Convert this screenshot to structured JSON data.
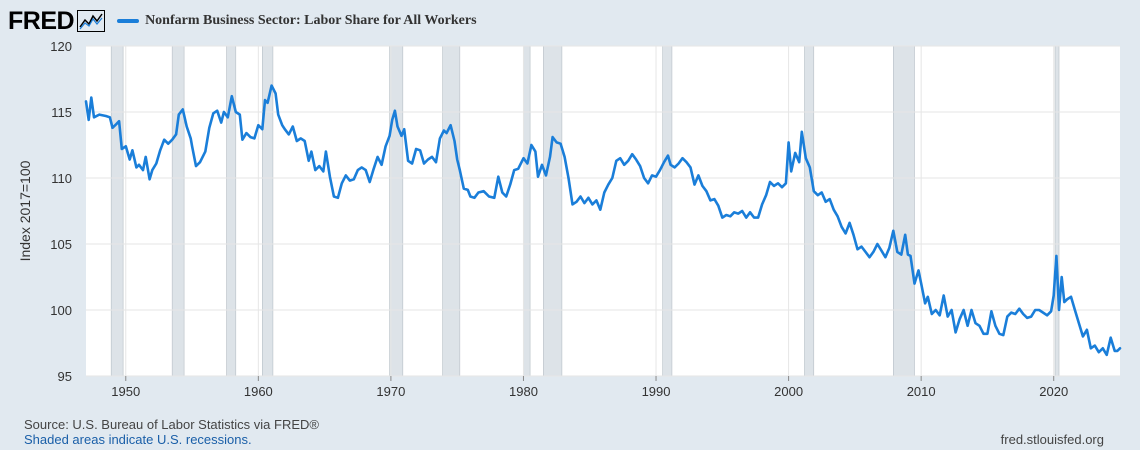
{
  "brand": {
    "logo_text": "FRED"
  },
  "legend": {
    "label": "Nonfarm Business Sector: Labor Share for All Workers",
    "color": "#1a7ed9"
  },
  "footer": {
    "source": "Source: U.S. Bureau of Labor Statistics via FRED®",
    "recession_note": "Shaded areas indicate U.S. recessions.",
    "site": "fred.stlouisfed.org"
  },
  "colors": {
    "line": "#1a7ed9",
    "recession": "#dde3e8",
    "recession_border": "#b7bfc6",
    "plot_bg": "#ffffff",
    "page_bg": "#e1e9f0",
    "grid": "#e6e6e6"
  },
  "chart_data": {
    "type": "line",
    "title": "Nonfarm Business Sector: Labor Share for All Workers",
    "ylabel": "Index 2017=100",
    "xlabel": "",
    "xlim": [
      1947.0,
      2025.0
    ],
    "ylim": [
      95,
      120
    ],
    "x_ticks": [
      1950,
      1960,
      1970,
      1980,
      1990,
      2000,
      2010,
      2020
    ],
    "y_ticks": [
      95,
      100,
      105,
      110,
      115,
      120
    ],
    "grid": true,
    "recessions": [
      [
        1948.9,
        1949.8
      ],
      [
        1953.5,
        1954.4
      ],
      [
        1957.6,
        1958.3
      ],
      [
        1960.3,
        1961.1
      ],
      [
        1969.9,
        1970.9
      ],
      [
        1973.9,
        1975.2
      ],
      [
        1980.0,
        1980.5
      ],
      [
        1981.5,
        1982.9
      ],
      [
        1990.5,
        1991.2
      ],
      [
        2001.2,
        2001.9
      ],
      [
        2007.9,
        2009.5
      ],
      [
        2020.1,
        2020.4
      ]
    ],
    "series": [
      {
        "name": "Nonfarm Business Sector: Labor Share for All Workers",
        "points": [
          [
            1947.0,
            115.8
          ],
          [
            1947.2,
            114.4
          ],
          [
            1947.4,
            116.1
          ],
          [
            1947.6,
            114.6
          ],
          [
            1948.0,
            114.8
          ],
          [
            1948.5,
            114.7
          ],
          [
            1948.8,
            114.6
          ],
          [
            1949.0,
            113.8
          ],
          [
            1949.3,
            114.1
          ],
          [
            1949.5,
            114.3
          ],
          [
            1949.7,
            112.2
          ],
          [
            1950.0,
            112.4
          ],
          [
            1950.3,
            111.4
          ],
          [
            1950.5,
            112.1
          ],
          [
            1950.8,
            110.8
          ],
          [
            1951.0,
            111.0
          ],
          [
            1951.3,
            110.6
          ],
          [
            1951.5,
            111.6
          ],
          [
            1951.8,
            109.9
          ],
          [
            1952.0,
            110.6
          ],
          [
            1952.3,
            111.1
          ],
          [
            1952.6,
            112.1
          ],
          [
            1952.9,
            112.9
          ],
          [
            1953.2,
            112.6
          ],
          [
            1953.5,
            112.9
          ],
          [
            1953.8,
            113.3
          ],
          [
            1954.0,
            114.8
          ],
          [
            1954.3,
            115.2
          ],
          [
            1954.6,
            113.9
          ],
          [
            1954.9,
            113.0
          ],
          [
            1955.0,
            112.4
          ],
          [
            1955.3,
            110.9
          ],
          [
            1955.6,
            111.2
          ],
          [
            1955.9,
            111.8
          ],
          [
            1956.0,
            112.0
          ],
          [
            1956.3,
            113.8
          ],
          [
            1956.6,
            114.9
          ],
          [
            1956.9,
            115.1
          ],
          [
            1957.2,
            114.2
          ],
          [
            1957.4,
            115.0
          ],
          [
            1957.7,
            114.6
          ],
          [
            1958.0,
            116.2
          ],
          [
            1958.3,
            115.0
          ],
          [
            1958.6,
            114.8
          ],
          [
            1958.8,
            112.9
          ],
          [
            1959.1,
            113.4
          ],
          [
            1959.4,
            113.1
          ],
          [
            1959.7,
            113.0
          ],
          [
            1960.0,
            114.0
          ],
          [
            1960.3,
            113.7
          ],
          [
            1960.5,
            115.9
          ],
          [
            1960.7,
            115.7
          ],
          [
            1961.0,
            117.0
          ],
          [
            1961.3,
            116.4
          ],
          [
            1961.5,
            114.8
          ],
          [
            1961.8,
            114.0
          ],
          [
            1962.0,
            113.7
          ],
          [
            1962.3,
            113.3
          ],
          [
            1962.6,
            113.9
          ],
          [
            1962.9,
            112.8
          ],
          [
            1963.2,
            113.0
          ],
          [
            1963.5,
            112.8
          ],
          [
            1963.8,
            111.3
          ],
          [
            1964.0,
            112.0
          ],
          [
            1964.3,
            110.6
          ],
          [
            1964.6,
            110.9
          ],
          [
            1964.9,
            110.5
          ],
          [
            1965.1,
            112.0
          ],
          [
            1965.4,
            110.1
          ],
          [
            1965.7,
            108.6
          ],
          [
            1966.0,
            108.5
          ],
          [
            1966.3,
            109.6
          ],
          [
            1966.6,
            110.2
          ],
          [
            1966.9,
            109.8
          ],
          [
            1967.2,
            109.9
          ],
          [
            1967.5,
            110.6
          ],
          [
            1967.8,
            110.8
          ],
          [
            1968.1,
            110.6
          ],
          [
            1968.4,
            109.7
          ],
          [
            1968.7,
            110.7
          ],
          [
            1969.0,
            111.6
          ],
          [
            1969.3,
            111.0
          ],
          [
            1969.6,
            112.4
          ],
          [
            1969.9,
            113.2
          ],
          [
            1970.1,
            114.4
          ],
          [
            1970.3,
            115.1
          ],
          [
            1970.5,
            113.9
          ],
          [
            1970.8,
            113.2
          ],
          [
            1971.0,
            113.7
          ],
          [
            1971.3,
            111.3
          ],
          [
            1971.6,
            111.1
          ],
          [
            1971.9,
            112.2
          ],
          [
            1972.2,
            112.1
          ],
          [
            1972.5,
            111.1
          ],
          [
            1972.8,
            111.4
          ],
          [
            1973.1,
            111.6
          ],
          [
            1973.4,
            111.2
          ],
          [
            1973.7,
            113.0
          ],
          [
            1974.0,
            113.6
          ],
          [
            1974.2,
            113.4
          ],
          [
            1974.5,
            114.0
          ],
          [
            1974.8,
            112.8
          ],
          [
            1975.0,
            111.4
          ],
          [
            1975.2,
            110.6
          ],
          [
            1975.5,
            109.2
          ],
          [
            1975.8,
            109.1
          ],
          [
            1976.0,
            108.6
          ],
          [
            1976.3,
            108.5
          ],
          [
            1976.6,
            108.9
          ],
          [
            1977.0,
            109.0
          ],
          [
            1977.4,
            108.6
          ],
          [
            1977.8,
            108.5
          ],
          [
            1978.1,
            110.1
          ],
          [
            1978.4,
            108.9
          ],
          [
            1978.7,
            108.6
          ],
          [
            1979.0,
            109.5
          ],
          [
            1979.3,
            110.6
          ],
          [
            1979.6,
            110.7
          ],
          [
            1980.0,
            111.5
          ],
          [
            1980.3,
            111.1
          ],
          [
            1980.6,
            112.5
          ],
          [
            1980.9,
            112.0
          ],
          [
            1981.1,
            110.1
          ],
          [
            1981.4,
            111.0
          ],
          [
            1981.7,
            110.2
          ],
          [
            1982.0,
            111.6
          ],
          [
            1982.2,
            113.1
          ],
          [
            1982.5,
            112.7
          ],
          [
            1982.8,
            112.6
          ],
          [
            1983.1,
            111.6
          ],
          [
            1983.4,
            110.0
          ],
          [
            1983.7,
            108.0
          ],
          [
            1984.0,
            108.2
          ],
          [
            1984.3,
            108.6
          ],
          [
            1984.6,
            108.1
          ],
          [
            1984.9,
            108.5
          ],
          [
            1985.2,
            108.0
          ],
          [
            1985.5,
            108.3
          ],
          [
            1985.8,
            107.6
          ],
          [
            1986.1,
            108.9
          ],
          [
            1986.4,
            109.5
          ],
          [
            1986.7,
            110.0
          ],
          [
            1987.0,
            111.3
          ],
          [
            1987.3,
            111.5
          ],
          [
            1987.6,
            111.0
          ],
          [
            1987.9,
            111.3
          ],
          [
            1988.2,
            111.8
          ],
          [
            1988.5,
            111.4
          ],
          [
            1988.8,
            110.9
          ],
          [
            1989.1,
            110.0
          ],
          [
            1989.4,
            109.6
          ],
          [
            1989.7,
            110.2
          ],
          [
            1990.0,
            110.1
          ],
          [
            1990.3,
            110.6
          ],
          [
            1990.6,
            111.2
          ],
          [
            1990.9,
            111.7
          ],
          [
            1991.1,
            111.0
          ],
          [
            1991.4,
            110.8
          ],
          [
            1991.7,
            111.1
          ],
          [
            1992.0,
            111.5
          ],
          [
            1992.3,
            111.2
          ],
          [
            1992.6,
            110.8
          ],
          [
            1992.9,
            109.5
          ],
          [
            1993.2,
            110.2
          ],
          [
            1993.5,
            109.4
          ],
          [
            1993.8,
            109.0
          ],
          [
            1994.1,
            108.3
          ],
          [
            1994.4,
            108.4
          ],
          [
            1994.7,
            107.9
          ],
          [
            1995.0,
            107.0
          ],
          [
            1995.3,
            107.2
          ],
          [
            1995.6,
            107.1
          ],
          [
            1995.9,
            107.4
          ],
          [
            1996.2,
            107.3
          ],
          [
            1996.5,
            107.5
          ],
          [
            1996.8,
            107.0
          ],
          [
            1997.1,
            107.4
          ],
          [
            1997.4,
            107.0
          ],
          [
            1997.7,
            107.0
          ],
          [
            1998.0,
            108.0
          ],
          [
            1998.3,
            108.7
          ],
          [
            1998.6,
            109.7
          ],
          [
            1998.9,
            109.4
          ],
          [
            1999.2,
            109.6
          ],
          [
            1999.5,
            109.3
          ],
          [
            1999.8,
            109.6
          ],
          [
            2000.0,
            112.7
          ],
          [
            2000.2,
            110.5
          ],
          [
            2000.5,
            111.9
          ],
          [
            2000.8,
            111.2
          ],
          [
            2001.0,
            113.5
          ],
          [
            2001.3,
            111.5
          ],
          [
            2001.6,
            110.8
          ],
          [
            2001.9,
            109.0
          ],
          [
            2002.2,
            108.7
          ],
          [
            2002.5,
            108.9
          ],
          [
            2002.8,
            108.2
          ],
          [
            2003.1,
            108.4
          ],
          [
            2003.4,
            107.6
          ],
          [
            2003.7,
            107.1
          ],
          [
            2004.0,
            106.3
          ],
          [
            2004.3,
            105.8
          ],
          [
            2004.6,
            106.6
          ],
          [
            2004.9,
            105.7
          ],
          [
            2005.2,
            104.6
          ],
          [
            2005.5,
            104.8
          ],
          [
            2005.8,
            104.4
          ],
          [
            2006.1,
            104.0
          ],
          [
            2006.4,
            104.4
          ],
          [
            2006.7,
            105.0
          ],
          [
            2007.0,
            104.5
          ],
          [
            2007.3,
            104.0
          ],
          [
            2007.6,
            104.7
          ],
          [
            2007.9,
            106.0
          ],
          [
            2008.2,
            104.4
          ],
          [
            2008.5,
            104.2
          ],
          [
            2008.8,
            105.7
          ],
          [
            2009.0,
            104.2
          ],
          [
            2009.2,
            104.1
          ],
          [
            2009.5,
            102.0
          ],
          [
            2009.8,
            103.0
          ],
          [
            2010.0,
            102.0
          ],
          [
            2010.3,
            100.5
          ],
          [
            2010.5,
            101.0
          ],
          [
            2010.8,
            99.7
          ],
          [
            2011.1,
            100.0
          ],
          [
            2011.4,
            99.6
          ],
          [
            2011.7,
            101.1
          ],
          [
            2012.0,
            99.5
          ],
          [
            2012.3,
            100.0
          ],
          [
            2012.6,
            98.3
          ],
          [
            2012.9,
            99.3
          ],
          [
            2013.2,
            100.0
          ],
          [
            2013.5,
            98.8
          ],
          [
            2013.8,
            100.0
          ],
          [
            2014.1,
            99.0
          ],
          [
            2014.4,
            98.8
          ],
          [
            2014.7,
            98.2
          ],
          [
            2015.0,
            98.2
          ],
          [
            2015.3,
            99.9
          ],
          [
            2015.6,
            98.8
          ],
          [
            2015.9,
            98.2
          ],
          [
            2016.2,
            98.1
          ],
          [
            2016.5,
            99.5
          ],
          [
            2016.8,
            99.8
          ],
          [
            2017.1,
            99.7
          ],
          [
            2017.4,
            100.1
          ],
          [
            2017.7,
            99.7
          ],
          [
            2018.0,
            99.4
          ],
          [
            2018.3,
            99.5
          ],
          [
            2018.6,
            100.0
          ],
          [
            2018.9,
            100.0
          ],
          [
            2019.2,
            99.8
          ],
          [
            2019.5,
            99.6
          ],
          [
            2019.8,
            99.9
          ],
          [
            2020.0,
            101.1
          ],
          [
            2020.2,
            104.1
          ],
          [
            2020.4,
            100.0
          ],
          [
            2020.6,
            102.5
          ],
          [
            2020.8,
            100.6
          ],
          [
            2021.0,
            100.8
          ],
          [
            2021.3,
            101.0
          ],
          [
            2021.6,
            100.0
          ],
          [
            2021.9,
            99.0
          ],
          [
            2022.2,
            98.0
          ],
          [
            2022.5,
            98.5
          ],
          [
            2022.8,
            97.1
          ],
          [
            2023.1,
            97.3
          ],
          [
            2023.4,
            96.8
          ],
          [
            2023.7,
            97.1
          ],
          [
            2024.0,
            96.6
          ],
          [
            2024.3,
            97.9
          ],
          [
            2024.6,
            96.9
          ],
          [
            2024.8,
            96.9
          ],
          [
            2025.0,
            97.1
          ]
        ]
      }
    ]
  }
}
